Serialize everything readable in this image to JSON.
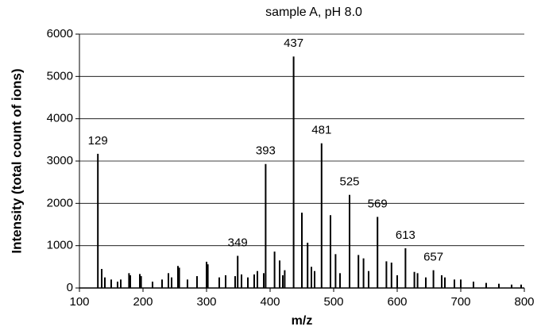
{
  "chart_data": {
    "type": "stick",
    "title": "sample A, pH 8.0",
    "x_label": "m/z",
    "y_label": "Intensity (total count of ions)",
    "xlim": [
      100,
      800
    ],
    "xticks": [
      100,
      200,
      300,
      400,
      500,
      600,
      700,
      800
    ],
    "ylim": [
      0,
      6000
    ],
    "yticks": [
      0,
      1000,
      2000,
      3000,
      4000,
      5000,
      6000
    ],
    "grid": true,
    "series": [
      {
        "color": "#000000",
        "show_x_labels": true,
        "x": [
          129,
          349,
          393,
          437,
          481,
          525,
          569,
          613,
          657
        ],
        "values": [
          3170,
          760,
          2930,
          5470,
          3420,
          2200,
          1680,
          940,
          420
        ]
      },
      {
        "color": "#000000",
        "show_x_labels": false,
        "x": [
          135,
          140,
          150,
          160,
          165,
          178,
          180,
          195,
          197,
          215,
          230,
          240,
          245,
          255,
          257,
          270,
          285,
          300,
          302,
          320,
          330,
          345,
          355,
          365,
          375,
          380,
          390,
          407,
          415,
          420,
          423,
          450,
          459,
          465,
          470,
          495,
          503,
          510,
          539,
          547,
          555,
          583,
          591,
          600,
          627,
          632,
          645,
          670,
          675,
          690,
          700,
          720,
          740,
          760,
          780,
          795
        ],
        "values": [
          450,
          250,
          200,
          150,
          200,
          350,
          300,
          330,
          280,
          150,
          200,
          350,
          250,
          520,
          480,
          200,
          280,
          620,
          560,
          250,
          300,
          280,
          320,
          250,
          320,
          400,
          350,
          860,
          650,
          300,
          420,
          1780,
          1070,
          500,
          400,
          1720,
          800,
          350,
          780,
          700,
          400,
          630,
          600,
          300,
          380,
          350,
          250,
          300,
          250,
          200,
          200,
          150,
          120,
          100,
          80,
          80
        ]
      }
    ]
  }
}
